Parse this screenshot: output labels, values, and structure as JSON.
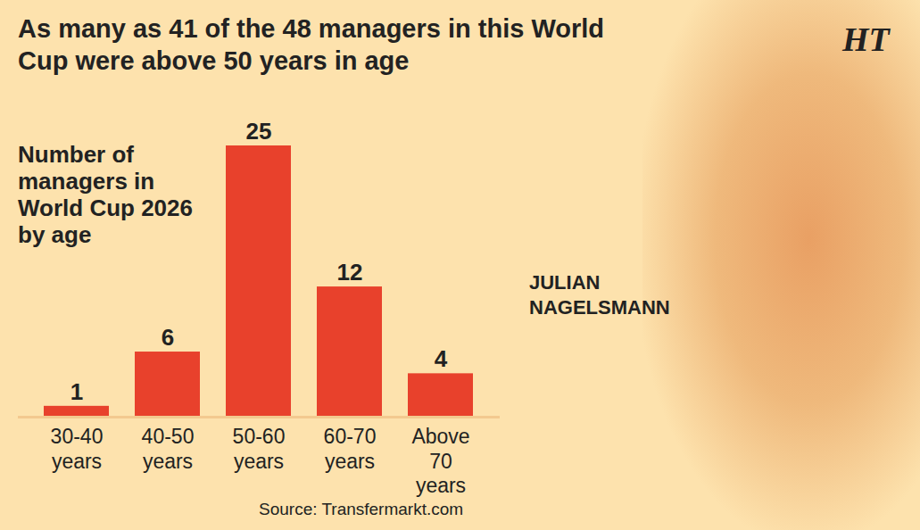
{
  "chart_data": {
    "type": "bar",
    "title": "As many as 41 of the 48 managers in this World Cup were above 50 years in age",
    "subtitle": "Number of managers in World Cup 2026 by age",
    "categories": [
      "30-40 years",
      "40-50 years",
      "50-60 years",
      "60-70 years",
      "Above 70 years"
    ],
    "values": [
      1,
      6,
      25,
      12,
      4
    ],
    "color": "#e8412c",
    "ylim": [
      0,
      25
    ],
    "grid": false,
    "data_labels": true,
    "tick_labels": "x",
    "annotations": [
      "JULIAN NAGELSMANN",
      "HT"
    ],
    "source": "Source: Transfermarkt.com"
  }
}
